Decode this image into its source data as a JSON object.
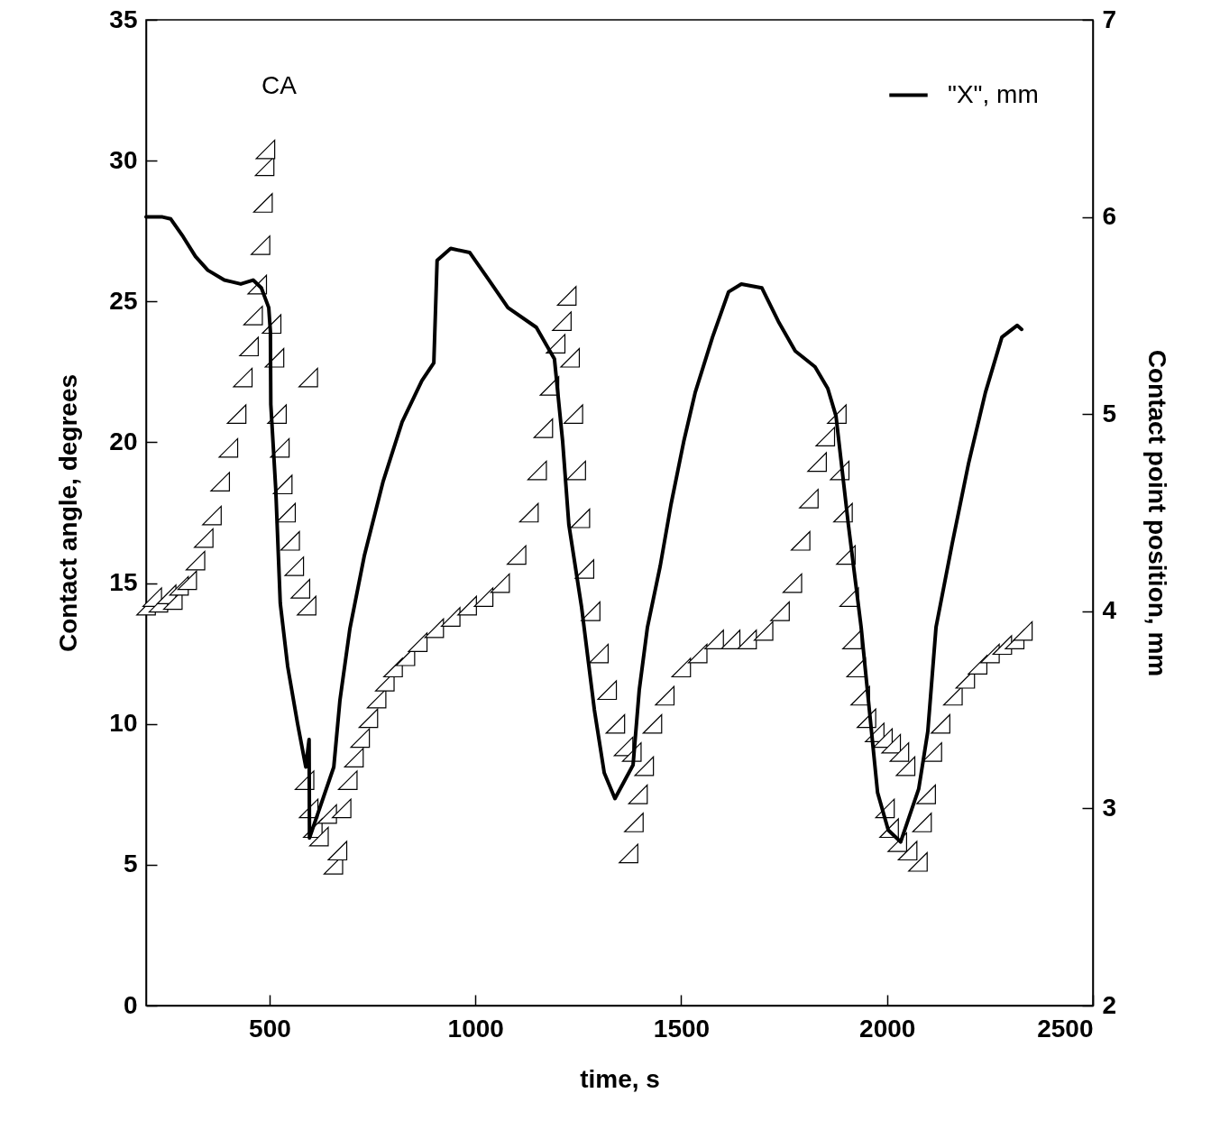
{
  "chart_data": {
    "type": "scatter",
    "xlabel": "time, s",
    "ylabel": "Contact angle, degrees",
    "y2label": "Contact point position, mm",
    "xlim": [
      200,
      2500
    ],
    "xticks": [
      500,
      {
        "value": 1000,
        "label": "1000"
      },
      {
        "value": 1500,
        "label": "1500"
      },
      {
        "value": 2000,
        "label": "2000"
      },
      {
        "value": 2500,
        "label": "2500"
      }
    ],
    "ylim": [
      0,
      35
    ],
    "yticks": [
      0,
      5,
      10,
      15,
      20,
      25,
      30,
      35
    ],
    "y2lim": [
      2,
      7
    ],
    "y2ticks": [
      2,
      3,
      4,
      5,
      6,
      7
    ],
    "grid": false,
    "legend": "top",
    "series": [
      {
        "name": "CA",
        "marker": "triangle",
        "color": "#000000",
        "x": [
          200,
          215,
          230,
          250,
          265,
          280,
          300,
          320,
          340,
          360,
          380,
          400,
          420,
          435,
          450,
          460,
          470,
          478,
          484,
          488,
          490,
          505,
          512,
          518,
          525,
          532,
          540,
          550,
          560,
          575,
          590,
          594,
          585,
          595,
          605,
          620,
          640,
          655,
          665,
          675,
          690,
          705,
          720,
          740,
          760,
          780,
          800,
          830,
          860,
          900,
          940,
          980,
          1020,
          1060,
          1100,
          1130,
          1150,
          1165,
          1180,
          1195,
          1210,
          1222,
          1230,
          1238,
          1245,
          1255,
          1265,
          1280,
          1300,
          1320,
          1340,
          1360,
          1380,
          1372,
          1385,
          1395,
          1410,
          1430,
          1460,
          1500,
          1540,
          1580,
          1620,
          1660,
          1700,
          1740,
          1770,
          1790,
          1810,
          1830,
          1850,
          1878,
          1885,
          1893,
          1900,
          1908,
          1915,
          1925,
          1935,
          1950,
          1970,
          1990,
          2010,
          2030,
          2045,
          1995,
          2005,
          2025,
          2050,
          2075,
          2085,
          2095,
          2110,
          2130,
          2160,
          2190,
          2220,
          2250,
          2280,
          2310,
          2330
        ],
        "values": [
          14.2,
          14.5,
          14.3,
          14.6,
          14.4,
          14.9,
          15.1,
          15.8,
          16.6,
          17.4,
          18.6,
          19.8,
          21.0,
          22.3,
          23.4,
          24.5,
          25.6,
          27.0,
          28.5,
          29.8,
          30.4,
          24.2,
          23.0,
          21.0,
          19.8,
          18.5,
          17.5,
          16.5,
          15.6,
          14.8,
          14.2,
          22.3,
          8.0,
          7.0,
          6.3,
          6.0,
          6.8,
          5.0,
          5.5,
          7.0,
          8.0,
          8.8,
          9.5,
          10.2,
          10.9,
          11.5,
          12.0,
          12.4,
          12.9,
          13.4,
          13.8,
          14.2,
          14.5,
          15.0,
          16.0,
          17.5,
          19.0,
          20.5,
          22.0,
          23.5,
          24.3,
          25.2,
          23.0,
          21.0,
          19.0,
          17.3,
          15.5,
          14.0,
          12.5,
          11.2,
          10.0,
          9.2,
          9.0,
          5.4,
          6.5,
          7.5,
          8.5,
          10.0,
          11.0,
          12.0,
          12.5,
          13.0,
          13.0,
          13.0,
          13.3,
          14.0,
          15.0,
          16.5,
          18.0,
          19.3,
          20.2,
          21.0,
          19.0,
          17.5,
          16.0,
          14.5,
          13.0,
          12.0,
          11.0,
          10.2,
          9.7,
          9.5,
          9.3,
          9.0,
          8.5,
          7.0,
          6.3,
          5.8,
          5.5,
          5.1,
          6.5,
          7.5,
          9.0,
          10.0,
          11.0,
          11.6,
          12.1,
          12.5,
          12.8,
          13.0,
          13.3
        ]
      },
      {
        "name": "\"X\", mm",
        "type": "line",
        "line_style": "solid",
        "axis": "y2",
        "color": "#000000",
        "x": [
          200,
          240,
          260,
          290,
          320,
          350,
          390,
          430,
          460,
          480,
          498,
          502,
          503,
          515,
          526,
          544,
          568,
          588,
          596,
          597,
          656,
          671,
          695,
          730,
          776,
          822,
          870,
          899,
          907,
          940,
          986,
          1033,
          1079,
          1148,
          1192,
          1212,
          1227,
          1258,
          1289,
          1313,
          1339,
          1383,
          1398,
          1418,
          1449,
          1475,
          1506,
          1534,
          1576,
          1615,
          1646,
          1696,
          1736,
          1777,
          1825,
          1856,
          1876,
          1906,
          1937,
          1957,
          1977,
          2003,
          2033,
          2077,
          2099,
          2119,
          2158,
          2198,
          2239,
          2279,
          2316,
          2327
        ],
        "values": [
          6.0,
          6.0,
          5.99,
          5.9,
          5.8,
          5.73,
          5.68,
          5.66,
          5.68,
          5.64,
          5.54,
          5.42,
          5.05,
          4.62,
          4.04,
          3.72,
          3.43,
          3.21,
          3.35,
          2.85,
          3.21,
          3.55,
          3.91,
          4.28,
          4.66,
          4.96,
          5.17,
          5.26,
          5.78,
          5.84,
          5.82,
          5.68,
          5.54,
          5.44,
          5.28,
          4.86,
          4.44,
          4.02,
          3.5,
          3.18,
          3.05,
          3.22,
          3.6,
          3.92,
          4.23,
          4.54,
          4.86,
          5.11,
          5.39,
          5.62,
          5.66,
          5.64,
          5.47,
          5.32,
          5.24,
          5.13,
          4.99,
          4.44,
          3.92,
          3.5,
          3.08,
          2.89,
          2.83,
          3.1,
          3.39,
          3.92,
          4.34,
          4.75,
          5.11,
          5.39,
          5.45,
          5.43
        ]
      }
    ]
  }
}
